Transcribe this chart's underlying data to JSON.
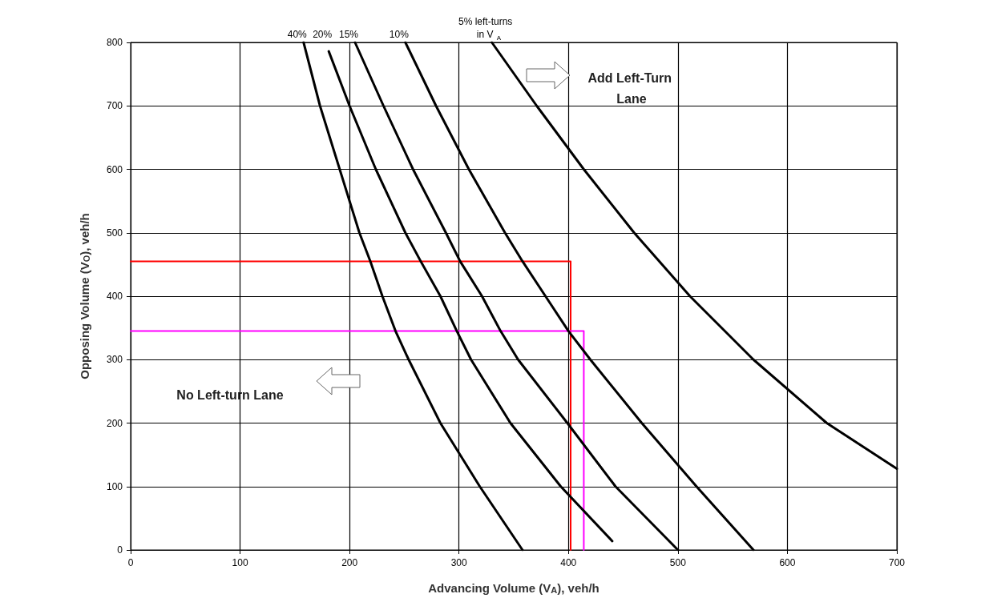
{
  "chart_data": {
    "type": "line",
    "xlabel": "Advancing Volume (V$_{A}$), veh/h",
    "ylabel": "Opposing Volume (V$_{O}$), veh/h",
    "xlim": [
      0,
      700
    ],
    "xticks": [
      0,
      100,
      200,
      300,
      400,
      500,
      600,
      700
    ],
    "ylim": [
      0,
      800
    ],
    "yticks": [
      0,
      100,
      200,
      300,
      400,
      500,
      600,
      700,
      800
    ],
    "grid": true,
    "marker": "none",
    "line_style": "solid",
    "annotations": [
      "Add Left-Turn Lane",
      "No Left-turn Lane"
    ],
    "series": [
      {
        "name": "40%",
        "color": "#000000",
        "x": [
          158,
          173,
          191,
          209,
          219,
          230,
          242,
          254,
          283,
          319,
          358
        ],
        "values": [
          800,
          700,
          600,
          500,
          455,
          400,
          345,
          300,
          200,
          100,
          0
        ]
      },
      {
        "name": "20%",
        "color": "#000000",
        "x": [
          181,
          200,
          224,
          251,
          265,
          283,
          298,
          311,
          347,
          393,
          440
        ],
        "values": [
          786,
          700,
          600,
          500,
          455,
          400,
          345,
          300,
          200,
          100,
          14
        ]
      },
      {
        "name": "15%",
        "color": "#000000",
        "x": [
          205,
          231,
          258,
          288,
          301,
          321,
          338,
          354,
          399,
          443,
          500
        ],
        "values": [
          800,
          700,
          600,
          500,
          455,
          400,
          345,
          300,
          200,
          100,
          0
        ]
      },
      {
        "name": "10%",
        "color": "#000000",
        "x": [
          251,
          279,
          309,
          342,
          358,
          379,
          400,
          420,
          467,
          517,
          569
        ],
        "values": [
          800,
          700,
          600,
          500,
          455,
          400,
          345,
          300,
          200,
          100,
          0
        ]
      },
      {
        "name": "5% left-turns in V$_{A}$",
        "color": "#000000",
        "x": [
          330,
          371,
          414,
          460,
          511,
          569,
          636,
          700
        ],
        "values": [
          800,
          700,
          600,
          500,
          400,
          300,
          200,
          128
        ]
      },
      {
        "color": "#ff0000",
        "x": [
          0,
          402,
          402
        ],
        "values": [
          455,
          455,
          0
        ]
      },
      {
        "color": "#ff00ff",
        "x": [
          0,
          414,
          414,
          414
        ],
        "values": [
          345,
          345,
          345,
          0
        ]
      }
    ]
  }
}
